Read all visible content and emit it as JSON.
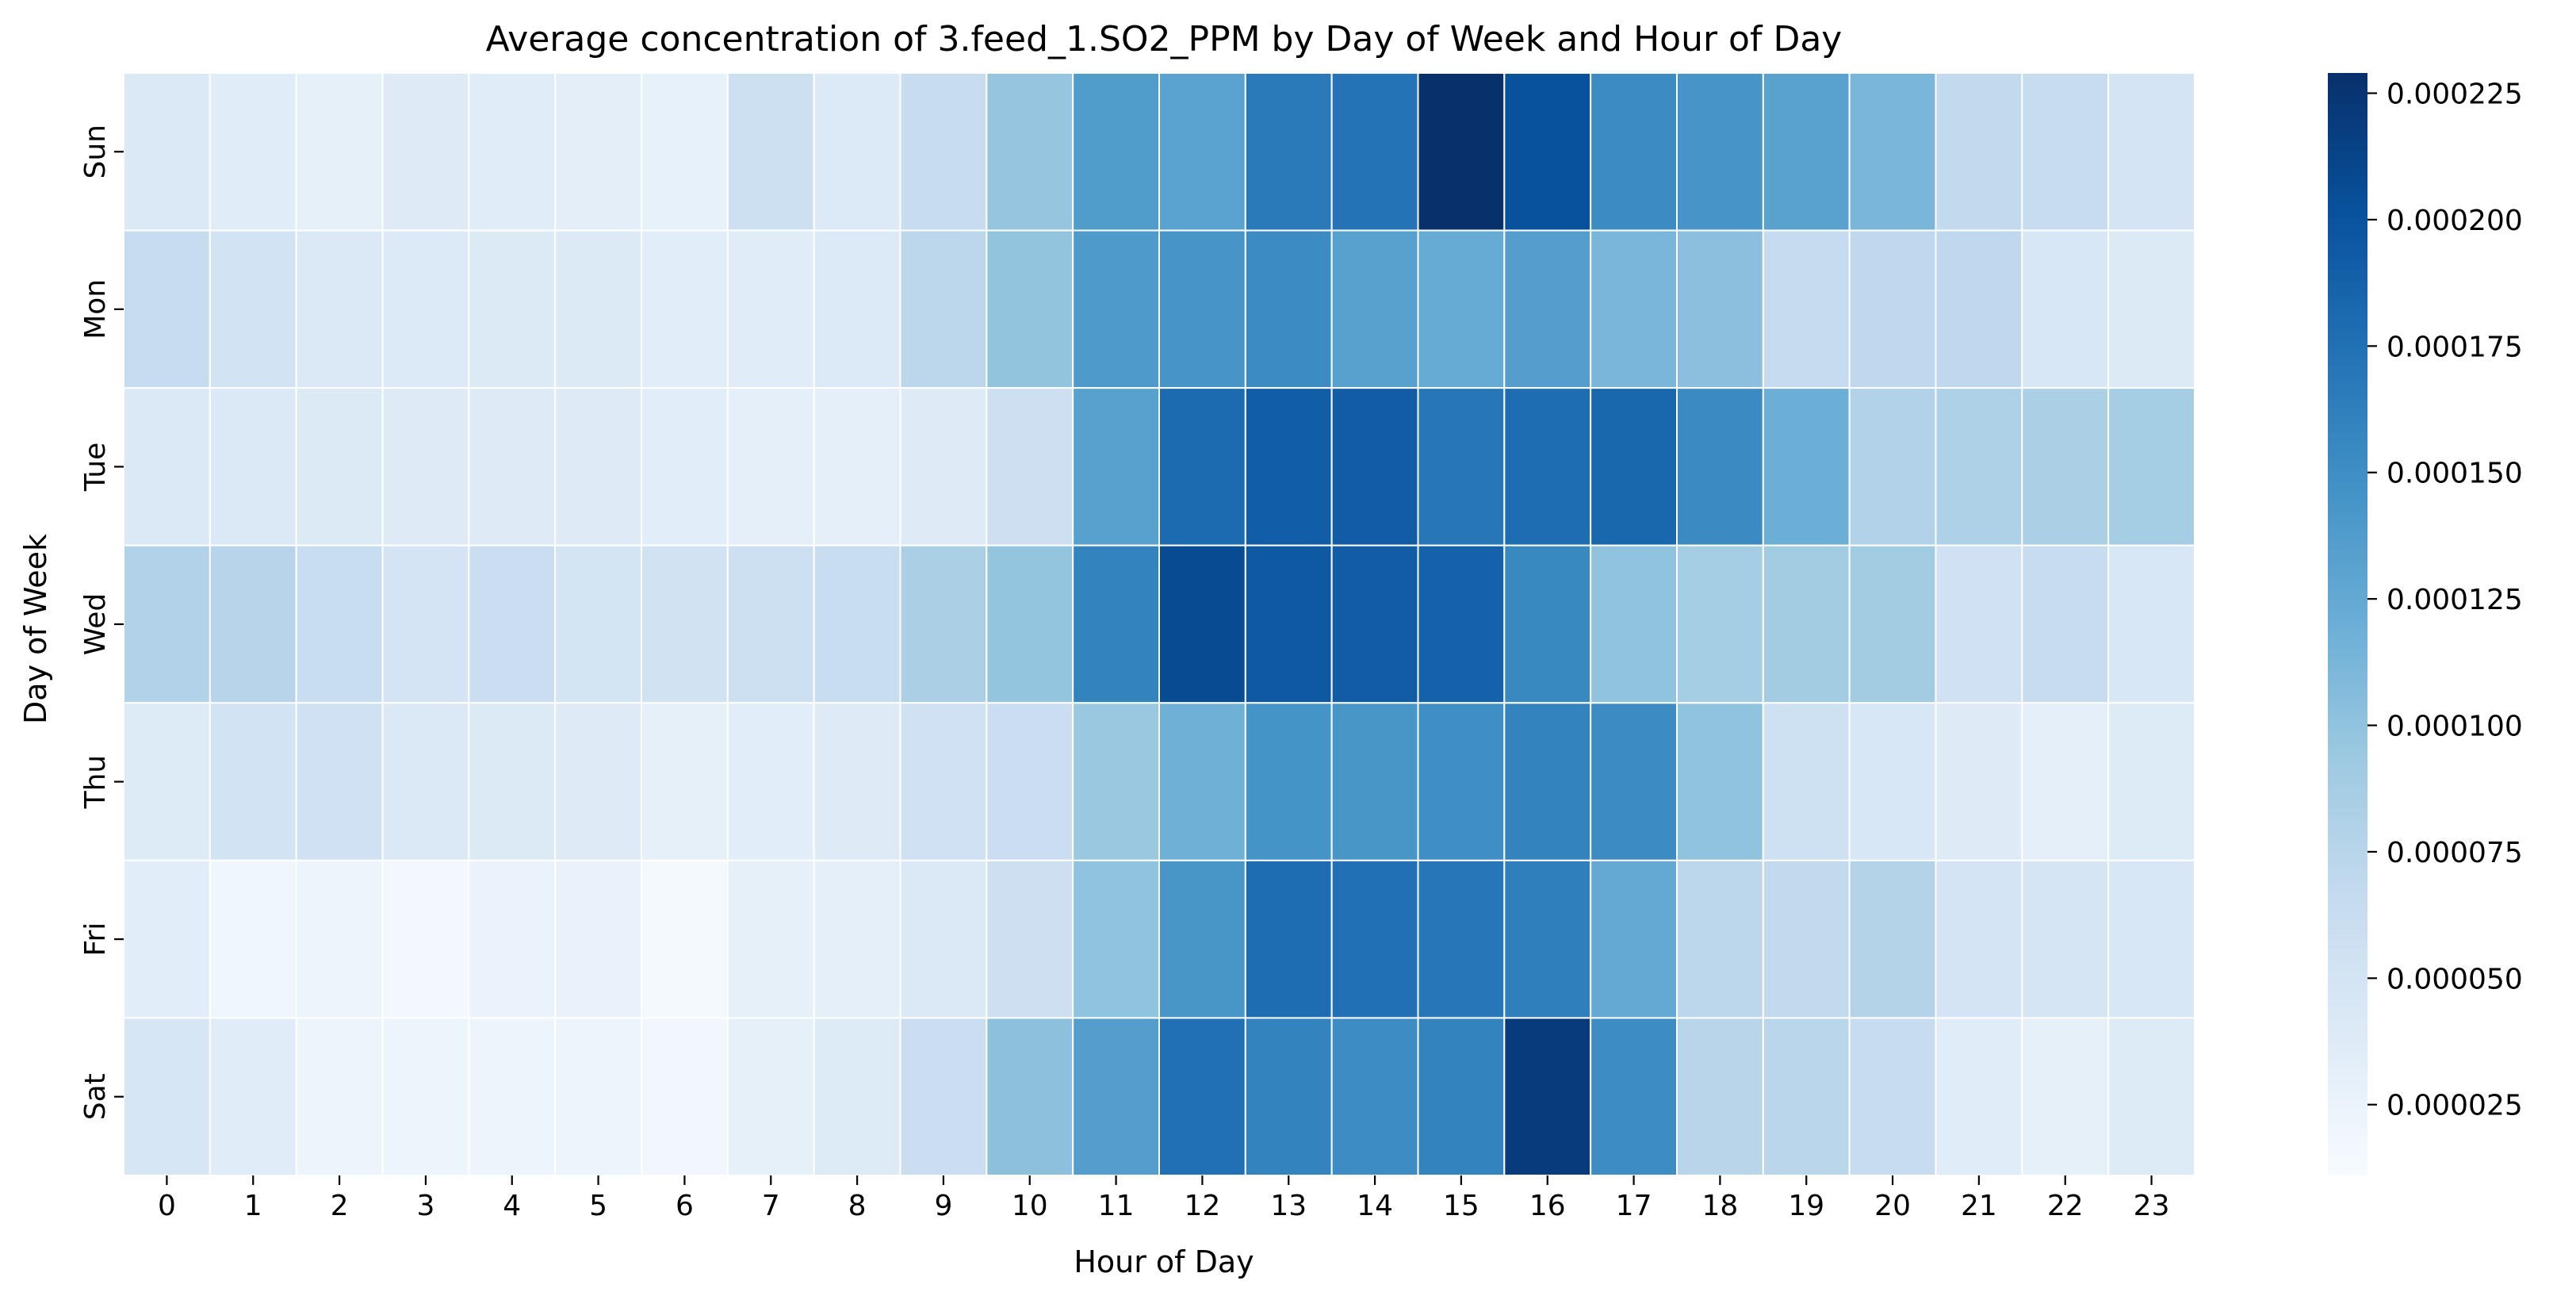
{
  "chart_data": {
    "type": "heatmap",
    "title": "Average concentration of 3.feed_1.SO2_PPM by Day of Week and Hour of Day",
    "xlabel": "Hour of Day",
    "ylabel": "Day of Week",
    "x_categories": [
      "0",
      "1",
      "2",
      "3",
      "4",
      "5",
      "6",
      "7",
      "8",
      "9",
      "10",
      "11",
      "12",
      "13",
      "14",
      "15",
      "16",
      "17",
      "18",
      "19",
      "20",
      "21",
      "22",
      "23"
    ],
    "y_categories": [
      "Sun",
      "Mon",
      "Tue",
      "Wed",
      "Thu",
      "Fri",
      "Sat"
    ],
    "colormap": "Blues",
    "colorbar": {
      "vmin": 1.1e-05,
      "vmax": 0.000229,
      "ticks": [
        2.5e-05,
        5e-05,
        7.5e-05,
        0.0001,
        0.000125,
        0.00015,
        0.000175,
        0.0002,
        0.000225
      ],
      "tick_labels": [
        "0.000025",
        "0.000050",
        "0.000075",
        "0.000100",
        "0.000125",
        "0.000150",
        "0.000175",
        "0.000200",
        "0.000225"
      ]
    },
    "values": [
      [
        4.2e-05,
        3.6e-05,
        3e-05,
        3.8e-05,
        3.6e-05,
        3.3e-05,
        2.8e-05,
        5.7e-05,
        4.1e-05,
        6.4e-05,
        9.7e-05,
        0.000138,
        0.000131,
        0.000167,
        0.000173,
        0.000229,
        0.000202,
        0.000152,
        0.000144,
        0.000132,
        0.000112,
        6.8e-05,
        6.3e-05,
        5e-05
      ],
      [
        6.4e-05,
        5.2e-05,
        4.2e-05,
        4.1e-05,
        4e-05,
        4e-05,
        3.5e-05,
        3.6e-05,
        4.1e-05,
        7.2e-05,
        9.9e-05,
        0.000139,
        0.000144,
        0.000152,
        0.000133,
        0.000123,
        0.000136,
        0.000112,
        0.000103,
        6.5e-05,
        7e-05,
        7e-05,
        4.5e-05,
        4e-05
      ],
      [
        4.2e-05,
        4.2e-05,
        4e-05,
        3.8e-05,
        3.8e-05,
        3.8e-05,
        3.5e-05,
        3.2e-05,
        3.2e-05,
        3.8e-05,
        5.8e-05,
        0.000133,
        0.00018,
        0.000191,
        0.000192,
        0.00017,
        0.000178,
        0.000183,
        0.000153,
        0.00012,
        8e-05,
        8.2e-05,
        8.4e-05,
        8.8e-05
      ],
      [
        8e-05,
        7.6e-05,
        6.2e-05,
        5e-05,
        6e-05,
        5.1e-05,
        5.3e-05,
        5.7e-05,
        6.2e-05,
        8.4e-05,
        9.8e-05,
        0.00016,
        0.000207,
        0.000195,
        0.000192,
        0.000187,
        0.000155,
        0.0001,
        8.8e-05,
        9e-05,
        9e-05,
        5.5e-05,
        6.3e-05,
        4.5e-05
      ],
      [
        3.9e-05,
        5.2e-05,
        5.5e-05,
        4.2e-05,
        4e-05,
        3.8e-05,
        3e-05,
        3.5e-05,
        3.8e-05,
        5.5e-05,
        6e-05,
        9.5e-05,
        0.000118,
        0.000145,
        0.000143,
        0.00015,
        0.00016,
        0.000152,
        0.0001,
        5.6e-05,
        4.5e-05,
        3.8e-05,
        3.2e-05,
        3.9e-05
      ],
      [
        3.5e-05,
        2e-05,
        2.2e-05,
        1.6e-05,
        2.5e-05,
        2.6e-05,
        1.4e-05,
        3e-05,
        3.2e-05,
        4.2e-05,
        5.8e-05,
        0.0001,
        0.000143,
        0.000178,
        0.000175,
        0.00017,
        0.000163,
        0.000125,
        7.2e-05,
        6.8e-05,
        7.8e-05,
        5e-05,
        4.8e-05,
        4.5e-05
      ],
      [
        4.7e-05,
        3.6e-05,
        2.2e-05,
        2.2e-05,
        2.2e-05,
        2.2e-05,
        1.8e-05,
        3e-05,
        3.9e-05,
        6e-05,
        0.000102,
        0.000136,
        0.000175,
        0.00016,
        0.000151,
        0.00016,
        0.00022,
        0.000151,
        7.5e-05,
        7.4e-05,
        6.3e-05,
        3.6e-05,
        3e-05,
        3.9e-05
      ]
    ]
  }
}
